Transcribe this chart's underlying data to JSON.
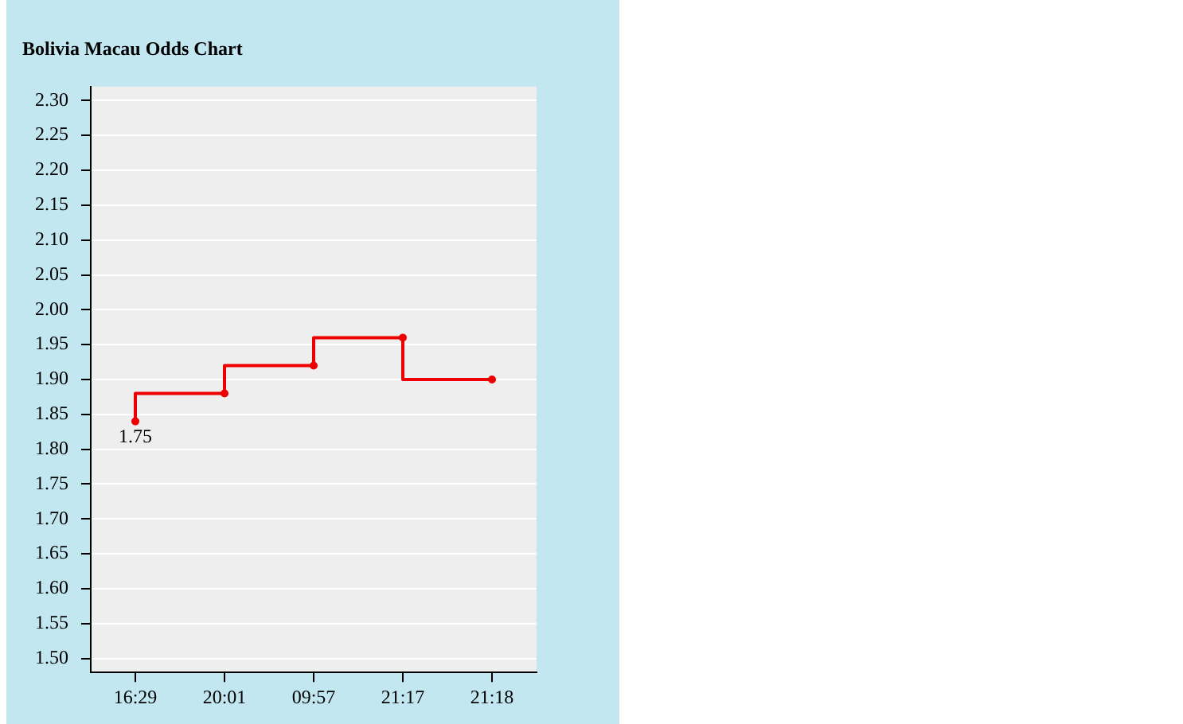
{
  "chart_data": {
    "type": "step",
    "title": "Bolivia Macau Odds Chart",
    "categories": [
      "16:29",
      "20:01",
      "09:57",
      "21:17",
      "21:18"
    ],
    "series": [
      {
        "color": "#ee0000",
        "values": [
          1.84,
          1.88,
          1.92,
          1.96,
          1.9
        ]
      }
    ],
    "ylim": [
      1.48,
      2.32
    ],
    "yticks": [
      {
        "value": 1.5,
        "label": "1.50"
      },
      {
        "value": 1.55,
        "label": "1.55"
      },
      {
        "value": 1.6,
        "label": "1.60"
      },
      {
        "value": 1.65,
        "label": "1.65"
      },
      {
        "value": 1.7,
        "label": "1.70"
      },
      {
        "value": 1.75,
        "label": "1.75"
      },
      {
        "value": 1.8,
        "label": "1.80"
      },
      {
        "value": 1.85,
        "label": "1.85"
      },
      {
        "value": 1.9,
        "label": "1.90"
      },
      {
        "value": 1.95,
        "label": "1.95"
      },
      {
        "value": 2.0,
        "label": "2.00"
      },
      {
        "value": 2.05,
        "label": "2.05"
      },
      {
        "value": 2.1,
        "label": "2.10"
      },
      {
        "value": 2.15,
        "label": "2.15"
      },
      {
        "value": 2.2,
        "label": "2.20"
      },
      {
        "value": 2.25,
        "label": "2.25"
      },
      {
        "value": 2.3,
        "label": "2.30"
      }
    ],
    "annotations": [
      {
        "text": "1.75",
        "x": "16:29",
        "y": 1.84
      }
    ],
    "grid": "y",
    "legend": false,
    "marker": "circle",
    "line_style": "solid"
  }
}
